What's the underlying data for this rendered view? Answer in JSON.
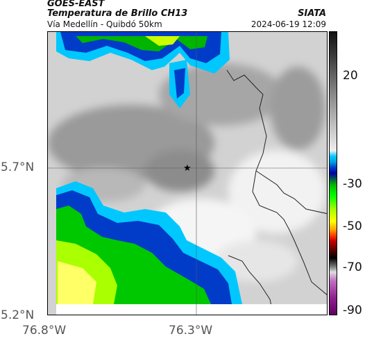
{
  "header": {
    "title": "GOES-EAST",
    "subtitle": "Temperatura de Brillo CH13",
    "route": "Vía Medellín - Quibdó 50km",
    "source": "SIATA",
    "timestamp": "2024-06-19 12:09"
  },
  "axes": {
    "lat_ticks": [
      "5.7°N",
      "5.2°N"
    ],
    "lon_ticks": [
      "76.8°W",
      "76.3°W"
    ]
  },
  "colorbar": {
    "labels": [
      "20",
      "-30",
      "-50",
      "-70",
      "-90"
    ]
  },
  "map": {
    "marker_icon": "star-icon",
    "colors": {
      "cloud_gray": "#b0b0b0",
      "cold_blue": "#003cc8",
      "cyan": "#00c8ff",
      "green": "#00d000",
      "yellow": "#ccff00"
    }
  }
}
